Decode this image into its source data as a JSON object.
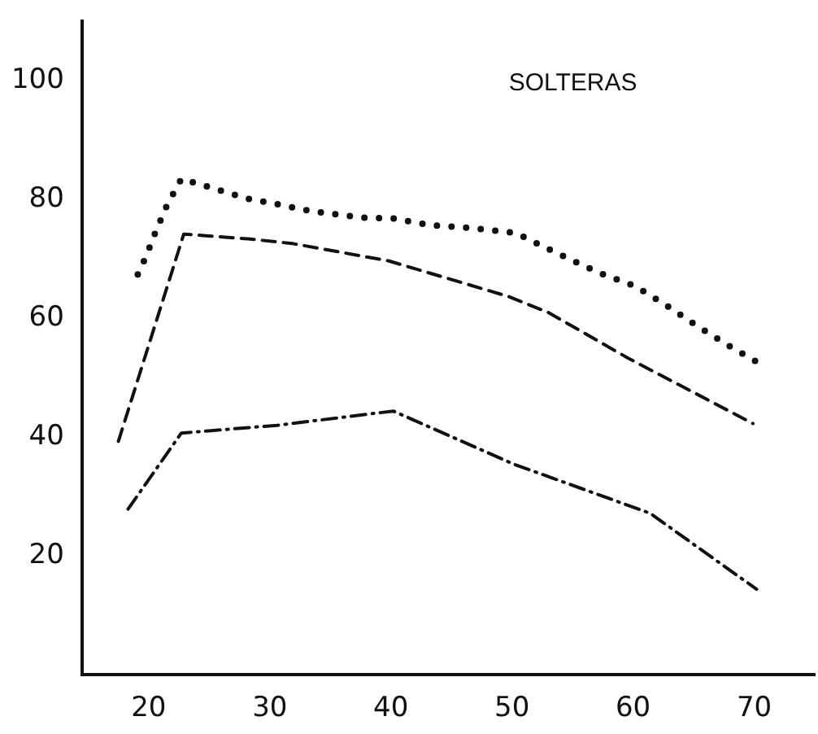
{
  "chart_data": {
    "type": "line",
    "annotations": [
      "SOLTERAS"
    ],
    "xlim": [
      14.5,
      75
    ],
    "xticks": [
      20,
      30,
      40,
      50,
      60,
      70
    ],
    "ylim": [
      0,
      110
    ],
    "yticks": [
      20,
      40,
      60,
      80,
      100
    ],
    "grid": false,
    "legend": false,
    "marker": "none",
    "series": [
      {
        "color": "#111111",
        "line_style": "dotted",
        "x": [
          19.1,
          19.8,
          20.6,
          21.5,
          22.7,
          25.2,
          28.1,
          30.2,
          33.6,
          37.5,
          40.4,
          43.2,
          46.8,
          50.3,
          53.7,
          57.3,
          60.1,
          62.6,
          65.3,
          67.9,
          70.2
        ],
        "values": [
          67.4,
          70.5,
          74.7,
          79,
          83.5,
          82,
          80.2,
          79.4,
          78,
          77,
          76.8,
          75.7,
          75.2,
          74.4,
          71,
          67.6,
          65.5,
          62.4,
          58.7,
          55.4,
          52.7
        ]
      },
      {
        "color": "#111111",
        "line_style": "dashed",
        "x": [
          17.5,
          22.9,
          28.2,
          31.9,
          39.8,
          49.7,
          53,
          59.6,
          69.9
        ],
        "values": [
          39.3,
          74.2,
          73.4,
          72.6,
          69.7,
          63.7,
          61,
          53.3,
          42.3
        ]
      },
      {
        "color": "#111111",
        "line_style": "dashdot",
        "x": [
          18.3,
          22.7,
          30.6,
          40.2,
          50.1,
          61.4,
          70.2
        ],
        "values": [
          27.9,
          40.7,
          42,
          44.4,
          35.5,
          27.2,
          14.4
        ]
      }
    ]
  }
}
